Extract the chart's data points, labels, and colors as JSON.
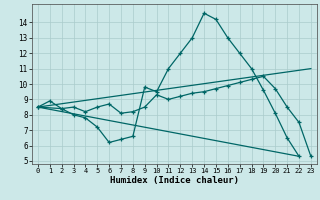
{
  "xlabel": "Humidex (Indice chaleur)",
  "background_color": "#cce8e8",
  "grid_color": "#aacccc",
  "line_color": "#006666",
  "xlim": [
    -0.5,
    23.5
  ],
  "ylim": [
    4.8,
    15.2
  ],
  "yticks": [
    5,
    6,
    7,
    8,
    9,
    10,
    11,
    12,
    13,
    14
  ],
  "xticks": [
    0,
    1,
    2,
    3,
    4,
    5,
    6,
    7,
    8,
    9,
    10,
    11,
    12,
    13,
    14,
    15,
    16,
    17,
    18,
    19,
    20,
    21,
    22,
    23
  ],
  "line1_x": [
    0,
    1,
    2,
    3,
    4,
    5,
    6,
    7,
    8,
    9,
    10,
    11,
    12,
    13,
    14,
    15,
    16,
    17,
    18,
    19,
    20,
    21,
    22
  ],
  "line1_y": [
    8.5,
    8.9,
    8.4,
    8.0,
    7.8,
    7.2,
    6.2,
    6.4,
    6.6,
    9.8,
    9.5,
    11.0,
    12.0,
    13.0,
    14.6,
    14.2,
    13.0,
    12.0,
    11.0,
    9.6,
    8.1,
    6.5,
    5.3
  ],
  "line2_x": [
    0,
    2,
    3,
    4,
    5,
    6,
    7,
    8,
    9,
    10,
    11,
    12,
    13,
    14,
    15,
    16,
    17,
    18,
    19,
    20,
    21,
    22,
    23
  ],
  "line2_y": [
    8.5,
    8.4,
    8.5,
    8.2,
    8.5,
    8.7,
    8.1,
    8.2,
    8.5,
    9.3,
    9.0,
    9.2,
    9.4,
    9.5,
    9.7,
    9.9,
    10.1,
    10.3,
    10.5,
    9.7,
    8.5,
    7.5,
    5.3
  ],
  "line3_x": [
    0,
    23
  ],
  "line3_y": [
    8.5,
    11.0
  ],
  "line4_x": [
    0,
    22
  ],
  "line4_y": [
    8.5,
    5.3
  ]
}
